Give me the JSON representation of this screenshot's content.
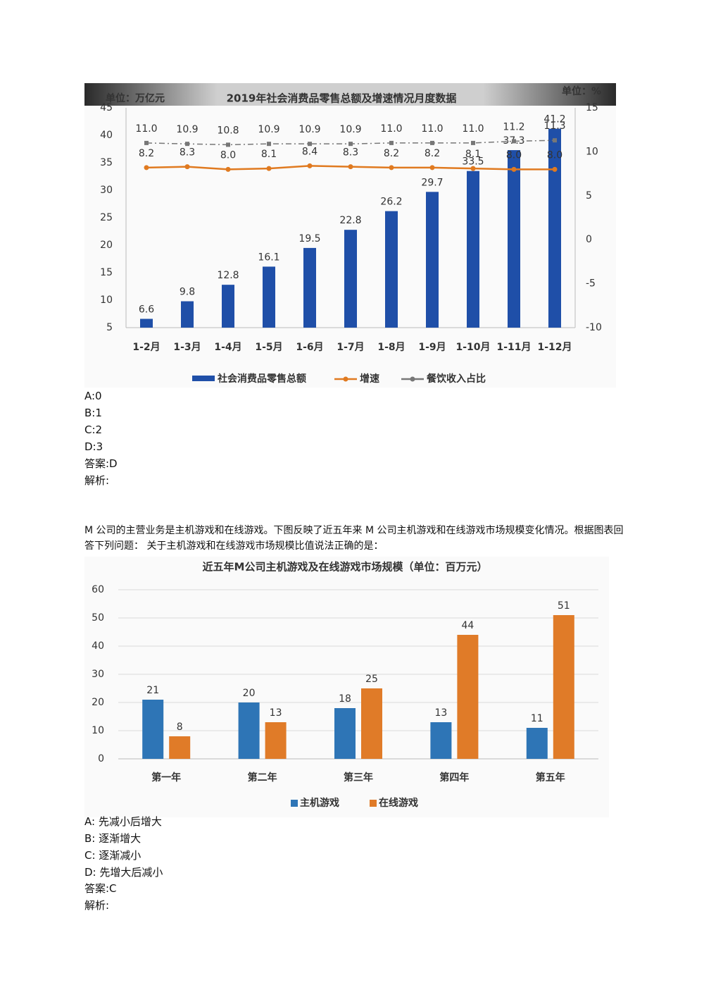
{
  "chart_data": [
    {
      "type": "bar",
      "title": "2019年社会消费品零售总额及增速情况月度数据",
      "unit_left": "单位：万亿元",
      "unit_right": "单位：%",
      "categories": [
        "1-2月",
        "1-3月",
        "1-4月",
        "1-5月",
        "1-6月",
        "1-7月",
        "1-8月",
        "1-9月",
        "1-10月",
        "1-11月",
        "1-12月"
      ],
      "series": [
        {
          "name": "社会消费品零售总额",
          "type": "bar",
          "color": "#1f4fa8",
          "values": [
            6.6,
            9.8,
            12.8,
            16.1,
            19.5,
            22.8,
            26.2,
            29.7,
            33.5,
            37.3,
            41.2
          ]
        },
        {
          "name": "增速",
          "type": "line",
          "axis": "y2",
          "color": "#e07a20",
          "values": [
            8.2,
            8.3,
            8.0,
            8.1,
            8.4,
            8.3,
            8.2,
            8.2,
            8.1,
            8.0,
            8.0
          ],
          "value_labels": [
            "8.2",
            "8.3",
            "8.0",
            "8.1",
            "8.4",
            "8.3",
            "8.2",
            "8.2",
            "8.1",
            "8.0",
            "8.0"
          ]
        },
        {
          "name": "餐饮收入占比",
          "type": "line",
          "axis": "y2",
          "linestyle": "dashed",
          "color": "#777777",
          "values": [
            11.0,
            10.9,
            10.8,
            10.9,
            10.9,
            10.9,
            11.0,
            11.0,
            11.0,
            11.2,
            11.3
          ],
          "value_labels": [
            "11.0",
            "10.9",
            "10.8",
            "10.9",
            "10.9",
            "10.9",
            "11.0",
            "11.0",
            "11.0",
            "11.2",
            "11.3"
          ]
        }
      ],
      "ylim": [
        5,
        45
      ],
      "yticks": [
        5,
        10,
        15,
        20,
        25,
        30,
        35,
        40,
        45
      ],
      "y2lim": [
        -10,
        15
      ],
      "y2ticks": [
        -10,
        -5,
        0,
        5,
        10,
        15
      ],
      "grid": false,
      "legend": "bottom"
    },
    {
      "type": "bar",
      "title": "近五年M公司主机游戏及在线游戏市场规模（单位：百万元）",
      "categories": [
        "第一年",
        "第二年",
        "第三年",
        "第四年",
        "第五年"
      ],
      "series": [
        {
          "name": "主机游戏",
          "type": "bar",
          "color": "#2e75b6",
          "values": [
            21,
            20,
            18,
            13,
            11
          ]
        },
        {
          "name": "在线游戏",
          "type": "bar",
          "color": "#e07b28",
          "values": [
            8,
            13,
            25,
            44,
            51
          ]
        }
      ],
      "ylim": [
        0,
        60
      ],
      "yticks": [
        0,
        10,
        20,
        30,
        40,
        50,
        60
      ],
      "grid": true,
      "legend": "bottom"
    }
  ],
  "questions": [
    {
      "options": [
        "A:0",
        "B:1",
        "C:2",
        "D:3"
      ],
      "answer": "答案:D",
      "analysis": "解析:"
    },
    {
      "stem": "M 公司的主营业务是主机游戏和在线游戏。下图反映了近五年来 M 公司主机游戏和在线游戏市场规模变化情况。根据图表回答下列问题：  关于主机游戏和在线游戏市场规模比值说法正确的是：",
      "options": [
        "A:  先减小后增大",
        "B:  逐渐增大",
        "C:  逐渐减小",
        "D:  先增大后减小"
      ],
      "answer": "答案:C",
      "analysis": "解析:"
    }
  ]
}
